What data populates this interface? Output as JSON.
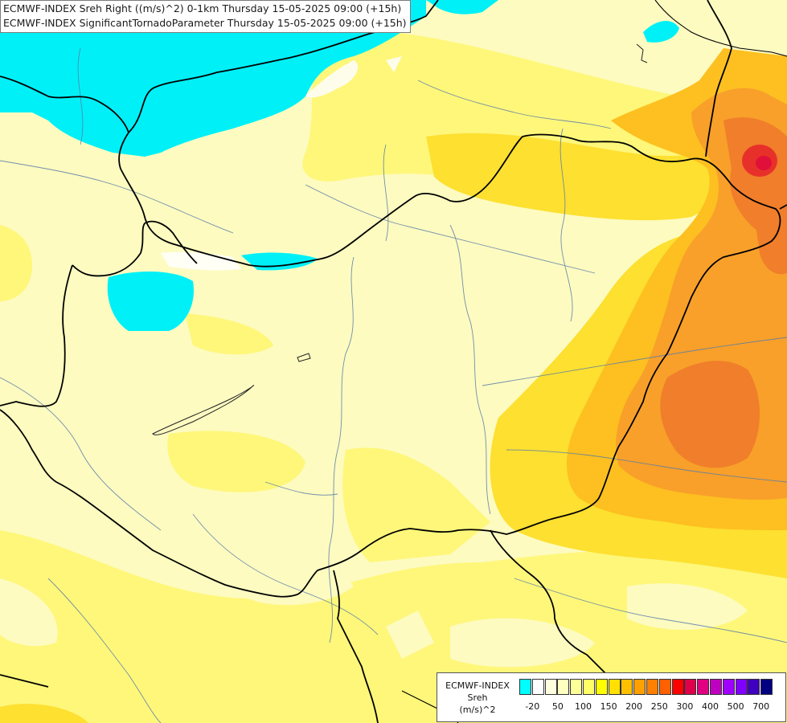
{
  "titles": {
    "line1": "ECMWF-INDEX Sreh Right ((m/s)^2) 0-1km Thursday 15-05-2025 09:00 (+15h)",
    "line2": "ECMWF-INDEX SignificantTornadoParameter Thursday 15-05-2025 09:00 (+15h)"
  },
  "legend": {
    "model": "ECMWF-INDEX",
    "variable": "Sreh",
    "unit": "(m/s)^2",
    "colors": [
      "#00ffff",
      "#ffffff",
      "#ffffe0",
      "#ffffc0",
      "#ffff99",
      "#ffff66",
      "#ffff00",
      "#ffe000",
      "#ffc000",
      "#ffa000",
      "#ff8000",
      "#ff6000",
      "#ff0000",
      "#e0004a",
      "#e00080",
      "#c000c0",
      "#a000ff",
      "#8000ff",
      "#4000c0",
      "#000080"
    ],
    "tick_labels": [
      "-20",
      "50",
      "100",
      "150",
      "200",
      "250",
      "300",
      "400",
      "500",
      "700"
    ]
  },
  "map_colors": {
    "light_yellow": "#fdfbc0",
    "yellow": "#fef77a",
    "deep_yellow": "#fde030",
    "orange_yellow": "#fdc020",
    "orange": "#f8a02a",
    "dark_orange": "#f07e2a",
    "red": "#e8302a",
    "cyan": "#00f0f8"
  }
}
